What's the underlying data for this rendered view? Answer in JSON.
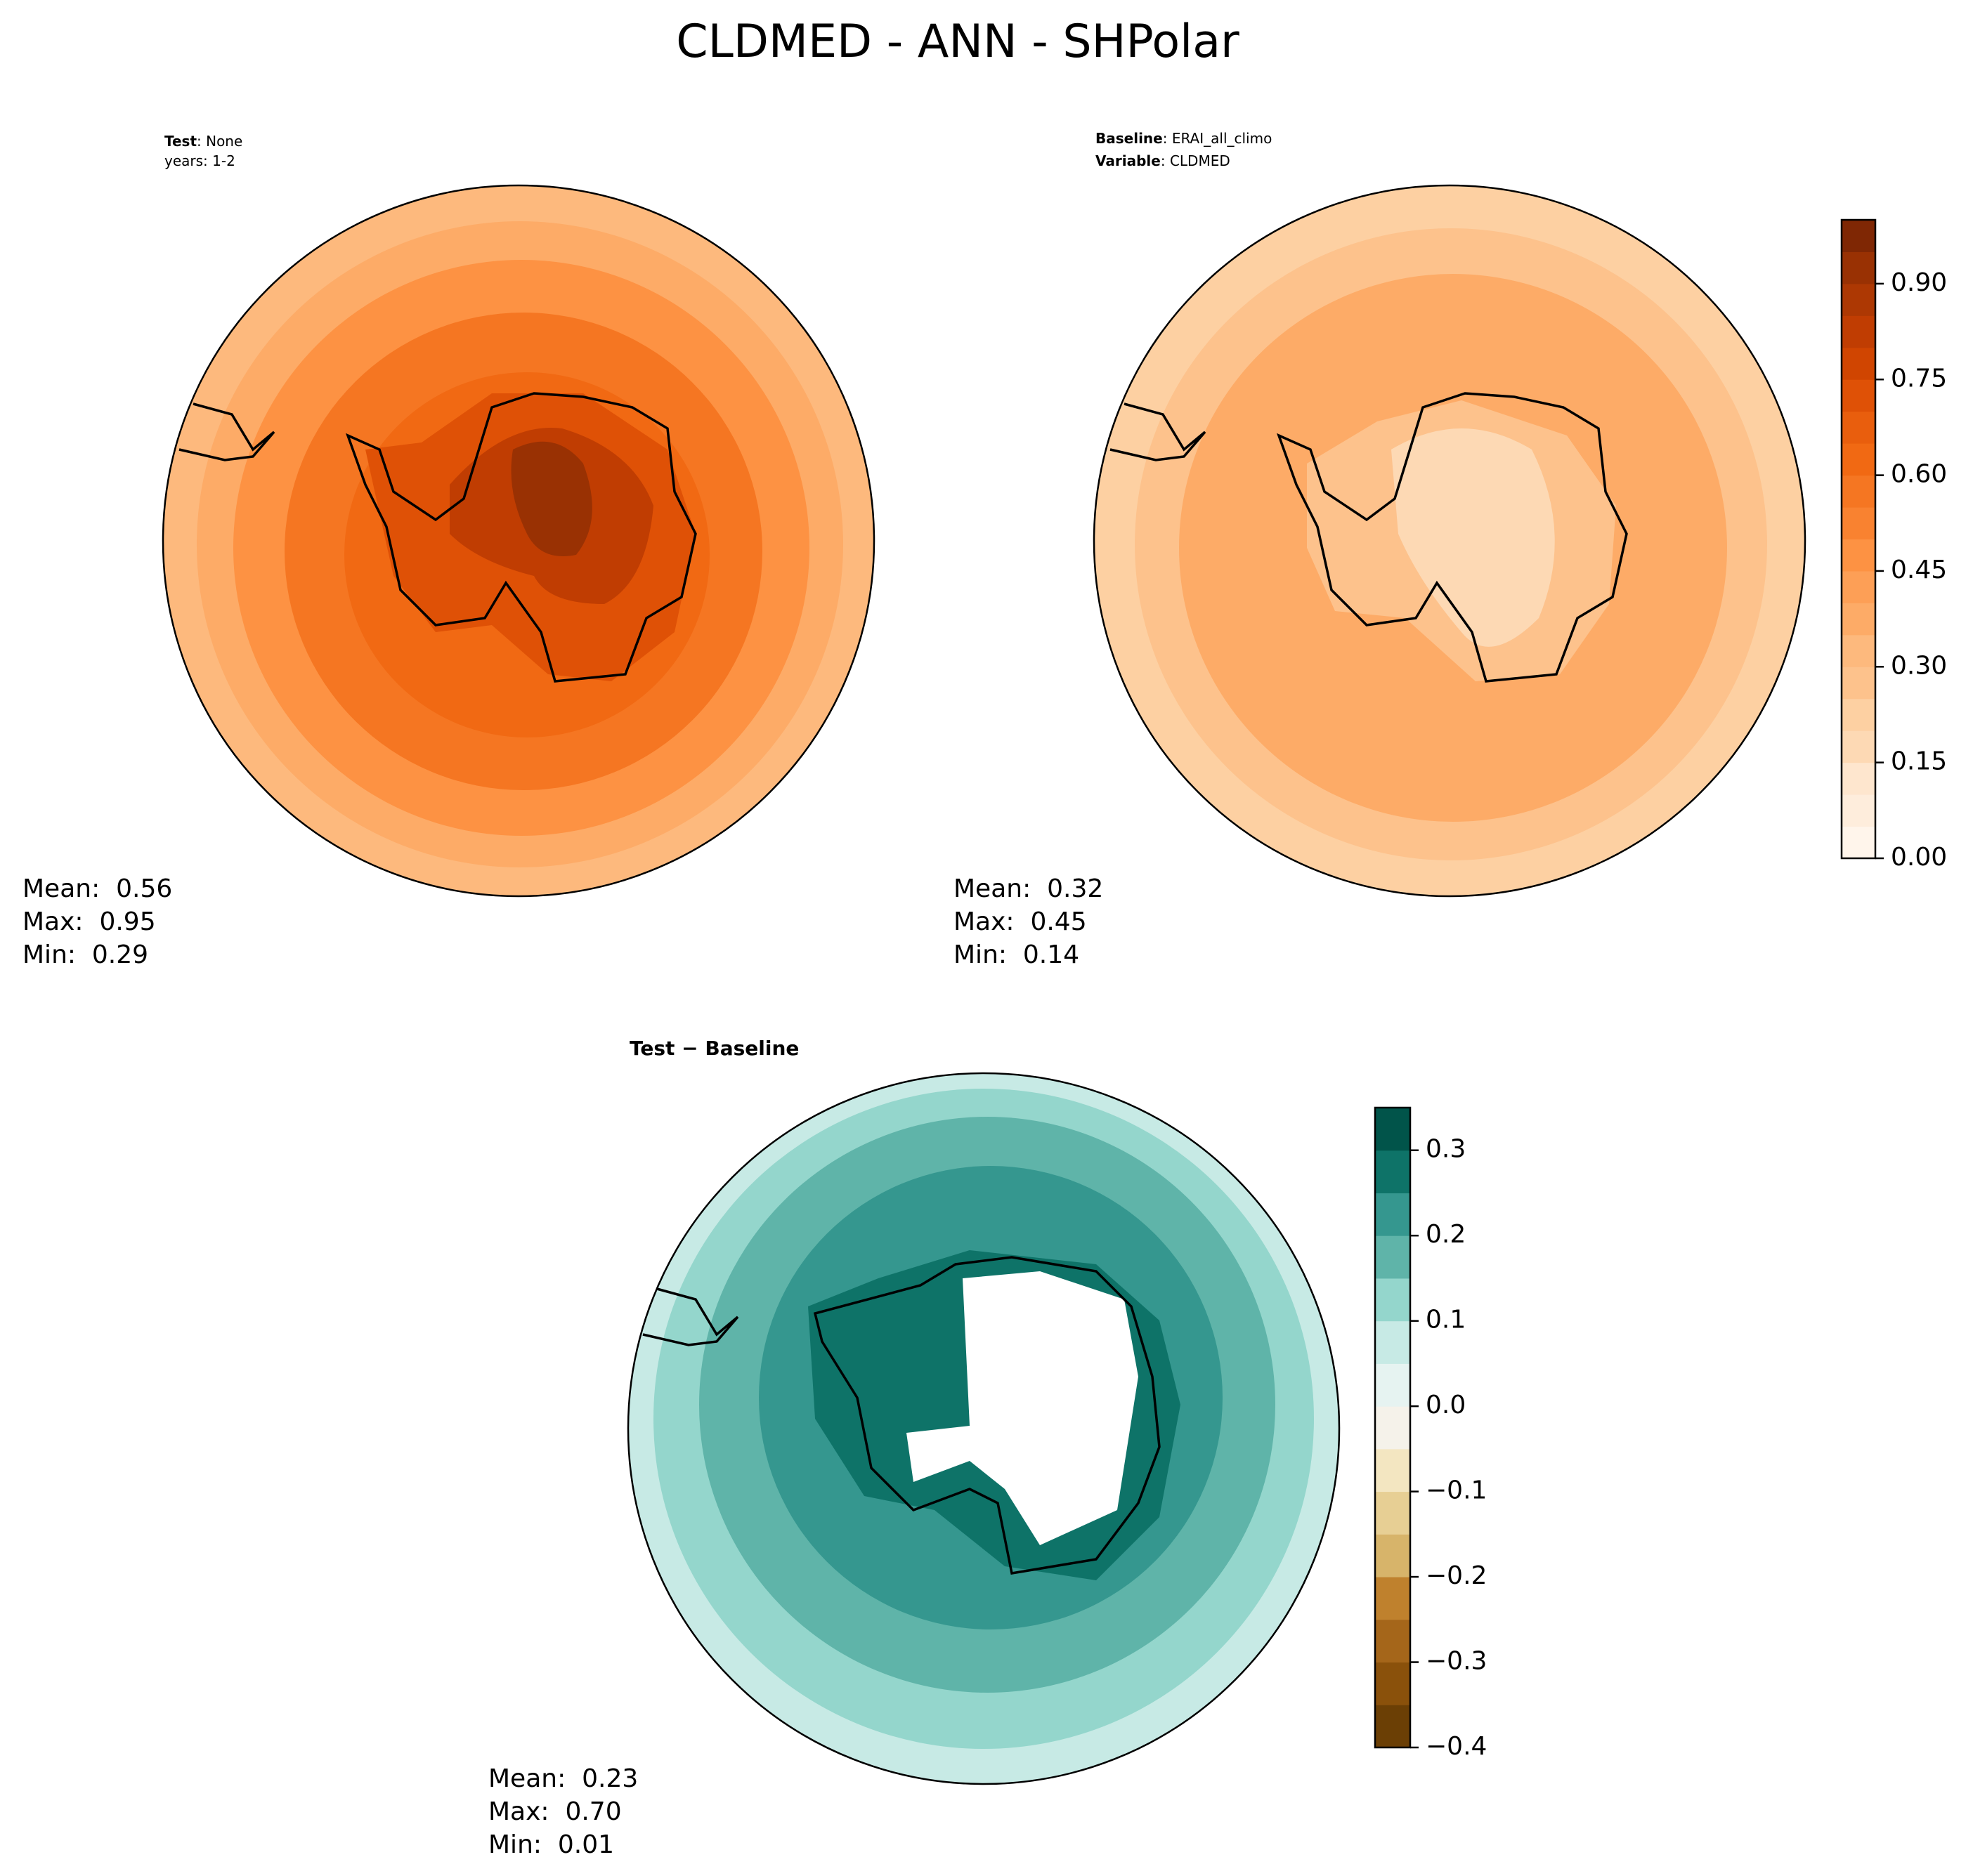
{
  "chart_data": {
    "type": "polar-map",
    "title": "CLDMED - ANN - SHPolar",
    "panels": [
      {
        "labels": [
          {
            "name": "Test",
            "text": ": None"
          },
          {
            "name": null,
            "text": "years: 1-2"
          }
        ],
        "stats": [
          "Mean:  0.56",
          "Max:  0.95",
          "Min:  0.29"
        ]
      },
      {
        "labels": [
          {
            "name": "Baseline",
            "text": ": ERAI_all_climo"
          },
          {
            "name": "Variable",
            "text": ": CLDMED"
          }
        ],
        "stats": [
          "Mean:  0.32",
          "Max:  0.45",
          "Min:  0.14"
        ]
      },
      {
        "labels": [
          {
            "name": "Test − Baseline",
            "text": null
          }
        ],
        "stats": [
          "Mean:  0.23",
          "Max:  0.70",
          "Min:  0.01"
        ]
      }
    ],
    "colorbars": [
      {
        "ylim": [
          0,
          1
        ],
        "yticks": [
          {
            "value": 0,
            "label": "0.00"
          },
          0.15,
          {
            "value": 0.3,
            "label": "0.30"
          },
          0.45,
          {
            "value": 0.6,
            "label": "0.60"
          },
          0.75,
          {
            "value": 0.9,
            "label": "0.90"
          }
        ],
        "colors": [
          "#fff5eb",
          "#feeddc",
          "#fee6ce",
          "#fdd9b4",
          "#fdd0a2",
          "#fdc28c",
          "#fdb97d",
          "#fdab67",
          "#fd9f56",
          "#fd9243",
          "#f98230",
          "#f57622",
          "#f16913",
          "#e95e0d",
          "#df5106",
          "#d04501",
          "#c03d02",
          "#ad3803",
          "#993103",
          "#7f2704"
        ]
      },
      {
        "ylim": [
          -0.4,
          0.35
        ],
        "yticks": [
          {
            "value": -0.4,
            "label": "−0.4"
          },
          {
            "value": -0.3,
            "label": "−0.3"
          },
          {
            "value": -0.2,
            "label": "−0.2"
          },
          {
            "value": -0.1,
            "label": "−0.1"
          },
          {
            "value": 0,
            "label": "0.0"
          },
          0.1,
          0.2,
          0.3
        ],
        "colors": [
          "#6b3f05",
          "#8a510b",
          "#a5661a",
          "#bf812d",
          "#d7b46a",
          "#e7cf94",
          "#f3e6c1",
          "#f5f2ea",
          "#e6f3f1",
          "#c7eae5",
          "#94d6cc",
          "#5fb4a9",
          "#35978f",
          "#0e7368",
          "#01544a"
        ]
      }
    ]
  }
}
